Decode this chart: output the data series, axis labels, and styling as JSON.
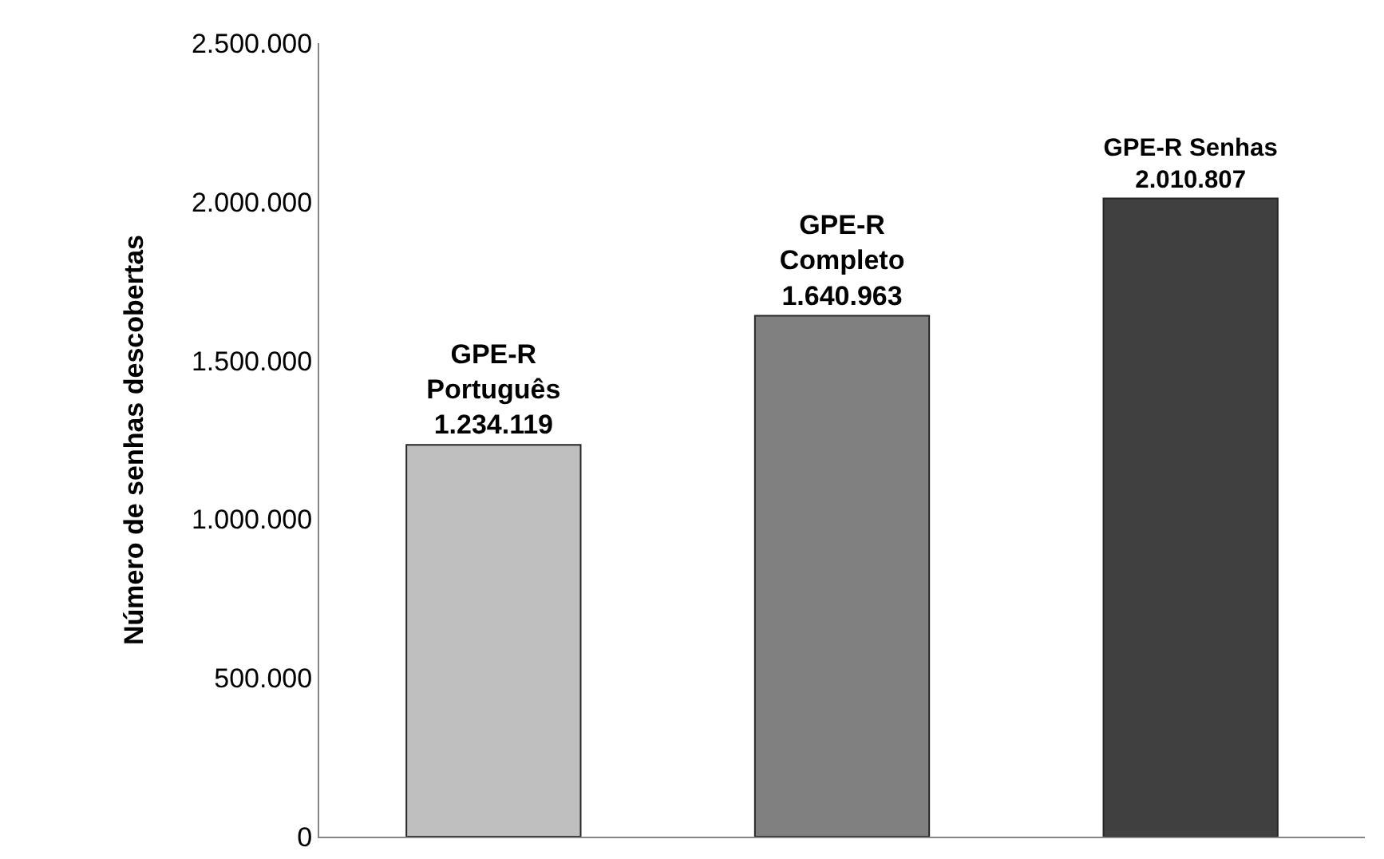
{
  "chart_data": {
    "type": "bar",
    "ylabel": "Número de senhas descobertas",
    "categories": [
      "GPE-R Português",
      "GPE-R Completo",
      "GPE-R Senhas"
    ],
    "values": [
      1234119,
      1640963,
      2010807
    ],
    "colors": [
      "#bfbfbf",
      "#808080",
      "#404040"
    ],
    "value_labels": [
      "1.234.119",
      "1.640.963",
      "2.010.807"
    ],
    "ylim": [
      0,
      2500000
    ],
    "yticks": [
      {
        "value": 0,
        "label": "0"
      },
      {
        "value": 500000,
        "label": "500.000"
      },
      {
        "value": 1000000,
        "label": "1.000.000"
      },
      {
        "value": 1500000,
        "label": "1.500.000"
      },
      {
        "value": 2000000,
        "label": "2.000.000"
      },
      {
        "value": 2500000,
        "label": "2.500.000"
      }
    ],
    "legend": false,
    "tick_labels": "y"
  }
}
